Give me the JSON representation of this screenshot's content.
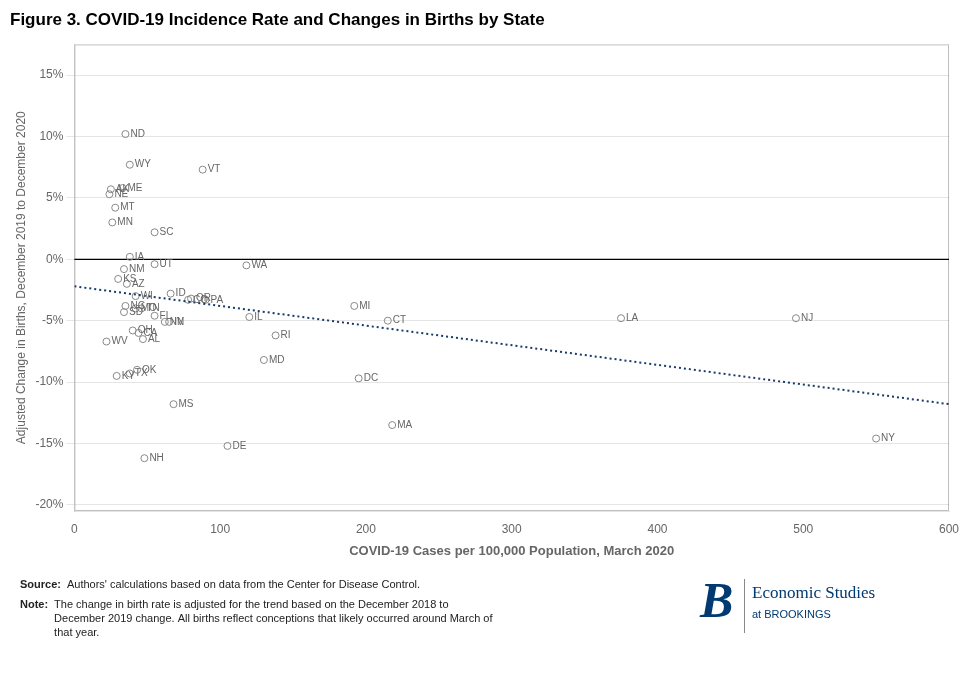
{
  "chart_data": {
    "type": "scatter",
    "title": "Figure 3. COVID-19 Incidence Rate and Changes in Births by State",
    "xlabel": "COVID-19 Cases per 100,000 Population, March 2020",
    "ylabel": "Adjusted Change in Births, December 2019 to December 2020",
    "x": [
      35,
      38,
      25,
      33,
      24,
      28,
      26,
      55,
      88,
      38,
      55,
      34,
      30,
      36,
      42,
      66,
      78,
      80,
      90,
      35,
      42,
      46,
      34,
      55,
      62,
      65,
      120,
      118,
      192,
      215,
      40,
      44,
      47,
      22,
      43,
      38,
      29,
      138,
      130,
      195,
      375,
      495,
      68,
      105,
      48,
      218,
      550
    ],
    "values": [
      0.102,
      0.077,
      0.057,
      0.058,
      0.053,
      0.042,
      0.03,
      0.022,
      0.073,
      0.002,
      -0.004,
      -0.008,
      -0.016,
      -0.02,
      -0.03,
      -0.028,
      -0.033,
      -0.032,
      -0.033,
      -0.038,
      -0.04,
      -0.04,
      -0.043,
      -0.046,
      -0.051,
      -0.051,
      -0.047,
      -0.005,
      -0.038,
      -0.05,
      -0.058,
      -0.06,
      -0.065,
      -0.067,
      -0.09,
      -0.093,
      -0.095,
      -0.062,
      -0.082,
      -0.097,
      -0.048,
      -0.048,
      -0.118,
      -0.152,
      -0.162,
      -0.135,
      -0.146
    ],
    "point_labels": [
      "ND",
      "WY",
      "AK",
      "ME",
      "NE",
      "MT",
      "MN",
      "SC",
      "VT",
      "IA",
      "UT",
      "NM",
      "KS",
      "AZ",
      "WI",
      "ID",
      "CO",
      "OR",
      "PA",
      "NC",
      "MO",
      "TN",
      "SD",
      "FL",
      "NV",
      "IN",
      "IL",
      "WA",
      "MI",
      "CT",
      "OH",
      "CA",
      "AL",
      "WV",
      "OK",
      "TX",
      "KY",
      "RI",
      "MD",
      "DC",
      "LA",
      "NJ",
      "MS",
      "DE",
      "NH",
      "MA",
      "NY"
    ],
    "color": "#888888",
    "marker": "circle",
    "trendline": {
      "x": [
        0,
        600
      ],
      "values": [
        -0.022,
        -0.118
      ],
      "color": "#1a3a6b",
      "line_style": "dotted"
    },
    "reference_lines": [
      {
        "y": 0,
        "color": "#000000"
      }
    ],
    "xlim": [
      0,
      600
    ],
    "ylim": [
      -0.205,
      0.175
    ],
    "xticks": [
      0,
      100,
      200,
      300,
      400,
      500,
      600
    ],
    "yticks": [
      {
        "value": -0.2,
        "label": "-20%"
      },
      {
        "value": -0.15,
        "label": "-15%"
      },
      {
        "value": -0.1,
        "label": "-10%"
      },
      {
        "value": -0.05,
        "label": "-5%"
      },
      {
        "value": 0.0,
        "label": "0%"
      },
      {
        "value": 0.05,
        "label": "5%"
      },
      {
        "value": 0.1,
        "label": "10%"
      },
      {
        "value": 0.15,
        "label": "15%"
      }
    ],
    "grid": "y",
    "annotations": [
      {
        "label": "Source:",
        "text": "Authors' calculations based on data from the Center for Disease Control."
      },
      {
        "label": "Note:",
        "text": "The change in birth rate is adjusted for the trend based on the December 2018 to\nDecember 2019 change. All births reflect conceptions that likely occurred around March of\nthat year."
      }
    ],
    "logo": {
      "mark": "B",
      "name": "Economic Studies",
      "subtitle": "at BROOKINGS",
      "color": "#003A70"
    }
  }
}
